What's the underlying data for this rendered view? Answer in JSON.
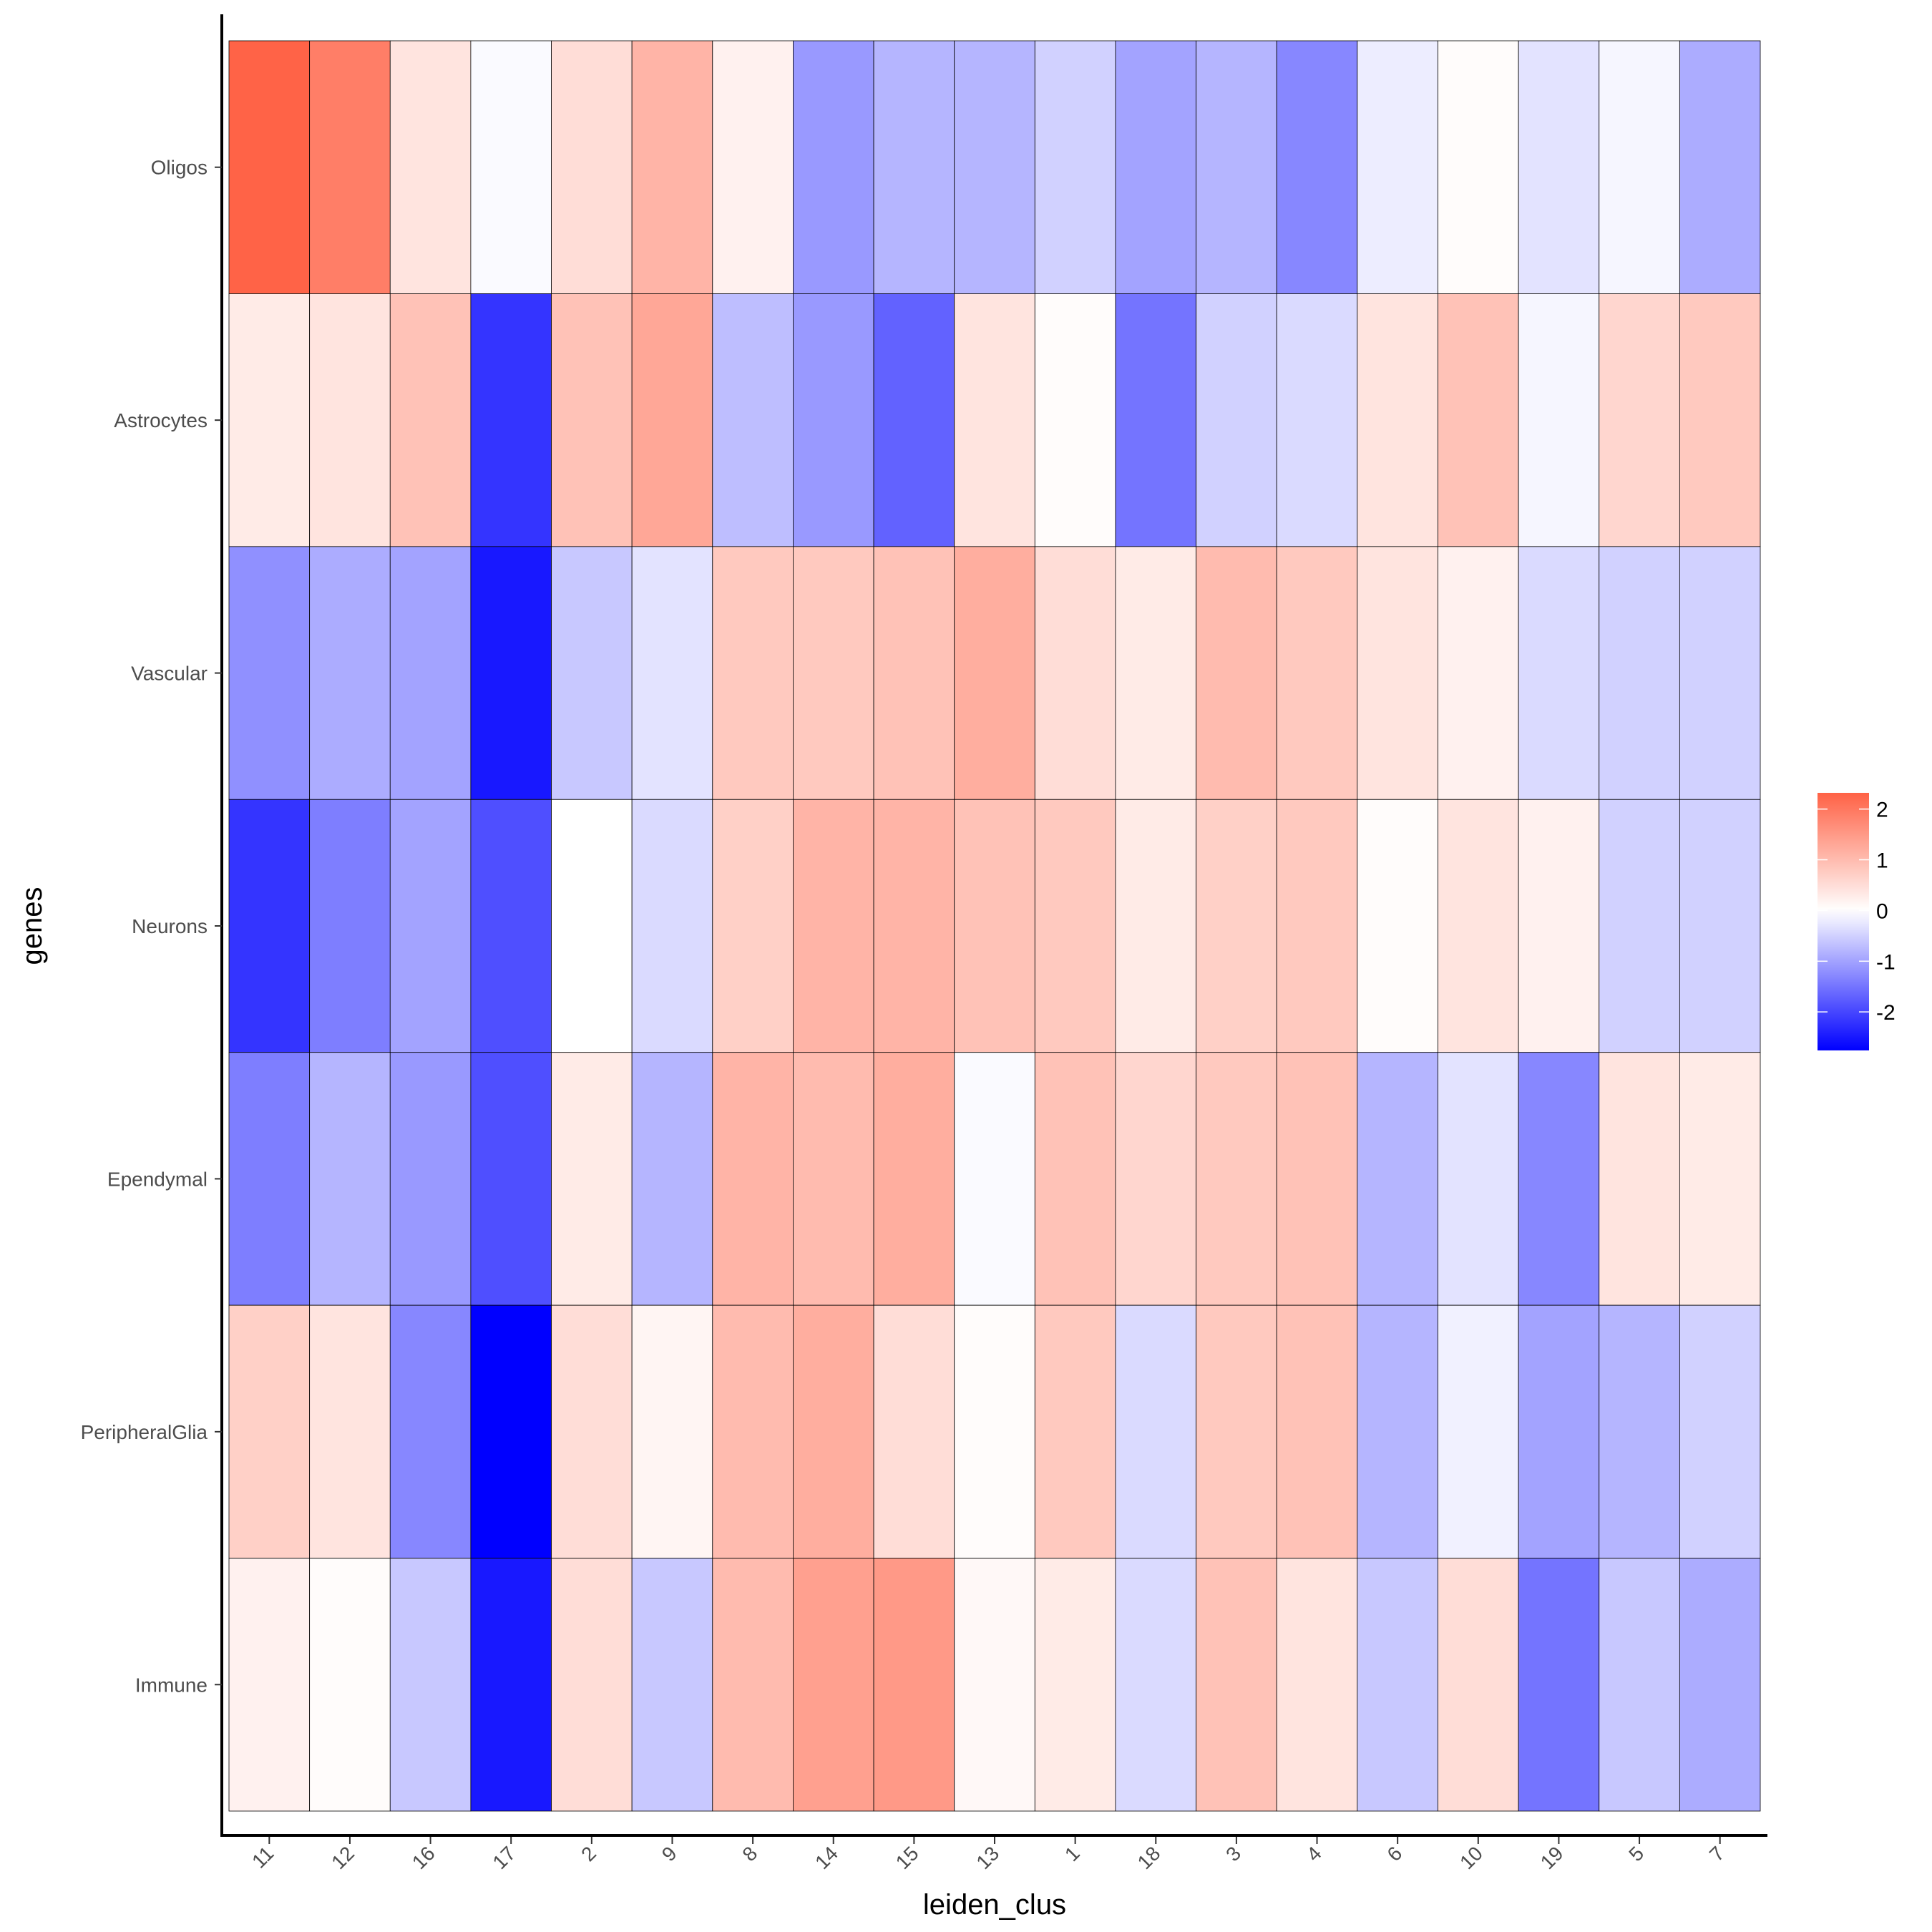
{
  "chart_data": {
    "type": "heatmap",
    "xlabel": "leiden_clus",
    "ylabel": "genes",
    "x_categories": [
      "11",
      "12",
      "16",
      "17",
      "2",
      "9",
      "8",
      "14",
      "15",
      "13",
      "1",
      "18",
      "3",
      "4",
      "6",
      "10",
      "19",
      "5",
      "7"
    ],
    "y_categories": [
      "Oligos",
      "Astrocytes",
      "Vascular",
      "Neurons",
      "Ependymal",
      "PeripheralGlia",
      "Immune"
    ],
    "values": [
      [
        2.3,
        1.9,
        0.4,
        -0.05,
        0.5,
        1.1,
        0.2,
        -1.1,
        -0.8,
        -0.8,
        -0.5,
        -1.0,
        -0.8,
        -1.3,
        -0.2,
        0.05,
        -0.3,
        -0.1,
        -0.9
      ],
      [
        0.3,
        0.4,
        0.9,
        -2.2,
        0.9,
        1.3,
        -0.7,
        -1.1,
        -1.7,
        0.4,
        0.05,
        -1.5,
        -0.5,
        -0.4,
        0.4,
        0.9,
        -0.1,
        0.6,
        0.8
      ],
      [
        -1.2,
        -0.9,
        -1.0,
        -2.5,
        -0.6,
        -0.3,
        0.8,
        0.8,
        0.9,
        1.2,
        0.5,
        0.3,
        1.0,
        0.8,
        0.4,
        0.2,
        -0.4,
        -0.5,
        -0.5
      ],
      [
        -2.2,
        -1.4,
        -1.0,
        -1.9,
        0.0,
        -0.4,
        0.7,
        1.1,
        1.1,
        0.9,
        0.8,
        0.3,
        0.7,
        0.8,
        0.05,
        0.4,
        0.2,
        -0.5,
        -0.5
      ],
      [
        -1.4,
        -0.8,
        -1.1,
        -1.9,
        0.3,
        -0.8,
        1.1,
        1.0,
        1.2,
        -0.05,
        0.9,
        0.6,
        0.8,
        0.9,
        -0.8,
        -0.3,
        -1.3,
        0.4,
        0.3
      ],
      [
        0.7,
        0.4,
        -1.3,
        -2.76,
        0.5,
        0.15,
        1.0,
        1.2,
        0.5,
        0.05,
        0.8,
        -0.4,
        0.8,
        0.9,
        -0.8,
        -0.15,
        -1.0,
        -0.8,
        -0.5
      ],
      [
        0.2,
        0.05,
        -0.6,
        -2.5,
        0.5,
        -0.6,
        1.0,
        1.4,
        1.5,
        0.1,
        0.3,
        -0.4,
        0.9,
        0.4,
        -0.6,
        0.5,
        -1.5,
        -0.6,
        -0.9
      ]
    ],
    "color_scale": {
      "low": "#0000FF",
      "mid": "#FFFFFF",
      "high": "#FF4422",
      "limits": [
        -2.76,
        2.32
      ]
    },
    "legend": {
      "placement": "right",
      "ticks": [
        "2",
        "1",
        "0",
        "-1",
        "-2"
      ],
      "tick_values": [
        2,
        1,
        0,
        -1,
        -2
      ]
    },
    "grid": false
  }
}
